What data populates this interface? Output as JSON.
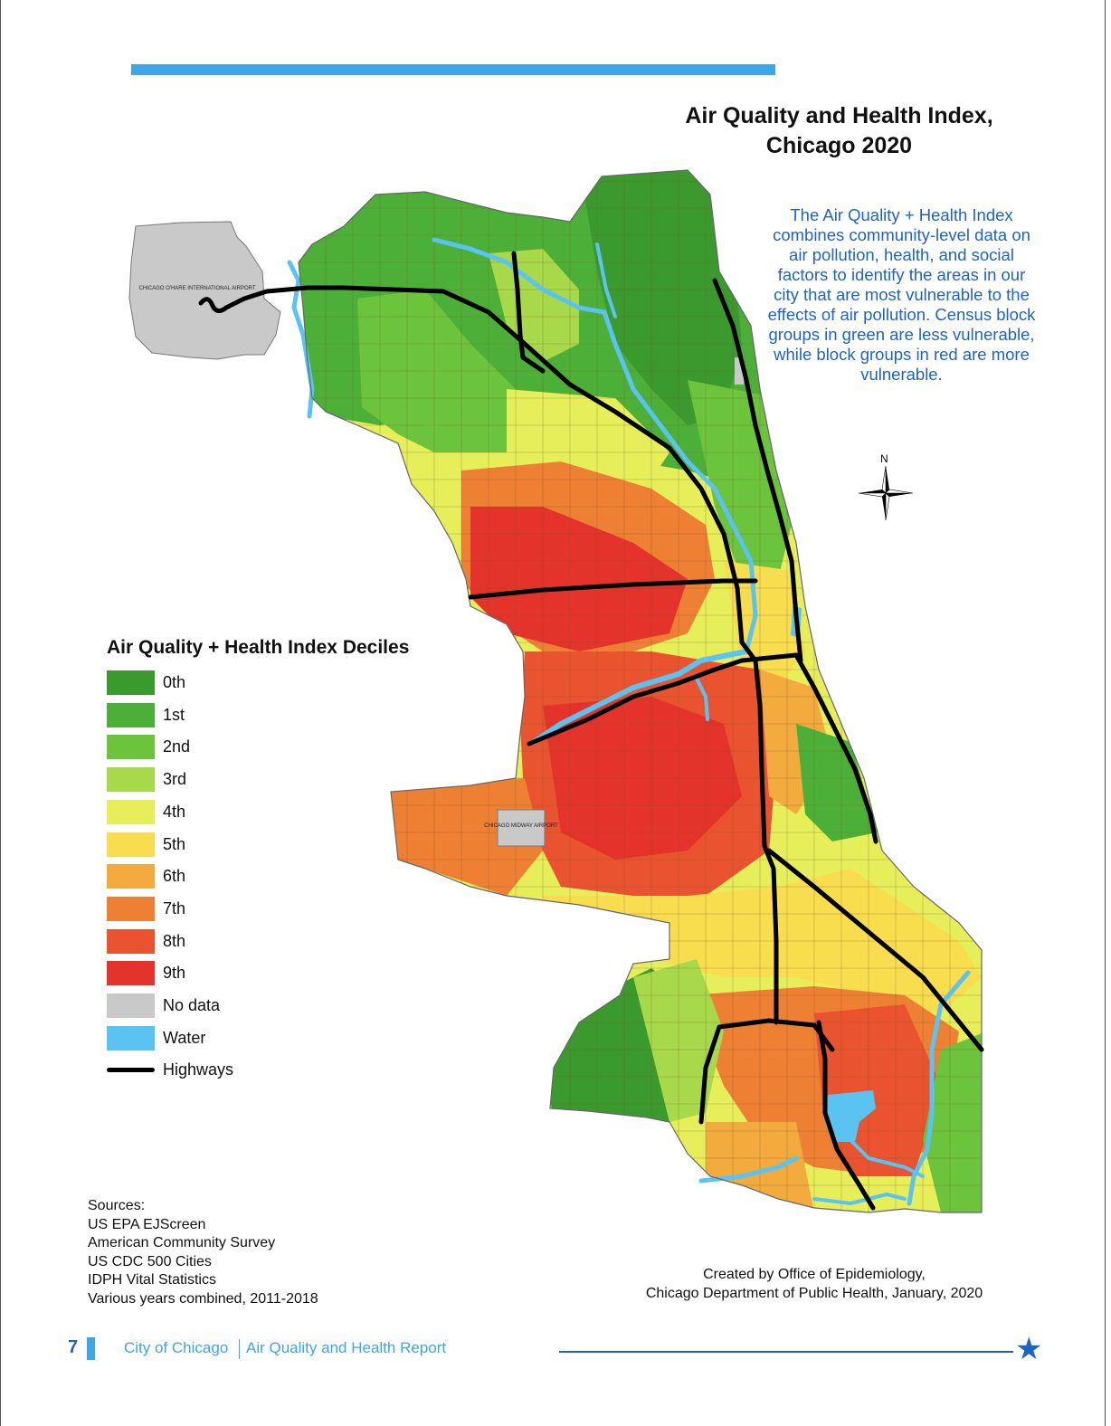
{
  "header": {
    "accent_color": "#3ea5e6"
  },
  "map": {
    "title_line1": "Air Quality and Health Index,",
    "title_line2": "Chicago 2020",
    "description": "The Air Quality + Health Index combines community-level data on air pollution, health, and social factors to identify the areas in our city that are most vulnerable to the effects of air pollution. Census block groups in green are less vulnerable, while block groups in red are more vulnerable.",
    "airport_north": "CHICAGO O'HARE INTERNATIONAL AIRPORT",
    "airport_south": "CHICAGO MIDWAY AIRPORT",
    "compass": "N",
    "colors": {
      "decile_0": "#3b9a2e",
      "decile_1": "#4caf37",
      "decile_2": "#6cc43c",
      "decile_3": "#a8d94a",
      "decile_4": "#e6ef5a",
      "decile_5": "#f8dd4e",
      "decile_6": "#f2ab3c",
      "decile_7": "#ee8034",
      "decile_8": "#e9532f",
      "decile_9": "#e3332a",
      "no_data": "#c9c9c9",
      "water": "#5bc3f1",
      "highways": "#000000"
    }
  },
  "legend": {
    "title": "Air Quality + Health Index Deciles",
    "items": [
      {
        "label": "0th",
        "color": "#3b9a2e"
      },
      {
        "label": "1st",
        "color": "#4caf37"
      },
      {
        "label": "2nd",
        "color": "#6cc43c"
      },
      {
        "label": "3rd",
        "color": "#a8d94a"
      },
      {
        "label": "4th",
        "color": "#e6ef5a"
      },
      {
        "label": "5th",
        "color": "#f8dd4e"
      },
      {
        "label": "6th",
        "color": "#f2ab3c"
      },
      {
        "label": "7th",
        "color": "#ee8034"
      },
      {
        "label": "8th",
        "color": "#e9532f"
      },
      {
        "label": "9th",
        "color": "#e3332a"
      },
      {
        "label": "No data",
        "color": "#c9c9c9"
      },
      {
        "label": "Water",
        "color": "#5bc3f1"
      }
    ],
    "highways_label": "Highways"
  },
  "sources": {
    "heading": "Sources:",
    "items": [
      "US EPA EJScreen",
      "American Community Survey",
      "US CDC 500 Cities",
      "IDPH Vital Statistics",
      "Various years combined, 2011-2018"
    ]
  },
  "credit": {
    "line1": "Created by Office of Epidemiology,",
    "line2": "Chicago Department of Public Health, January, 2020"
  },
  "footer": {
    "page_number": "7",
    "city": "City of Chicago",
    "report": "Air Quality and Health Report",
    "star": "★"
  }
}
